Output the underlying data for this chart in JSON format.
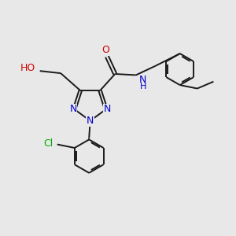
{
  "bg_color": "#e8e8e8",
  "bond_color": "#1a1a1a",
  "N_color": "#0000cc",
  "O_color": "#cc0000",
  "Cl_color": "#00aa00",
  "lw": 1.4,
  "figsize": [
    3.0,
    3.0
  ],
  "dpi": 100,
  "xlim": [
    0,
    10
  ],
  "ylim": [
    0,
    10
  ]
}
